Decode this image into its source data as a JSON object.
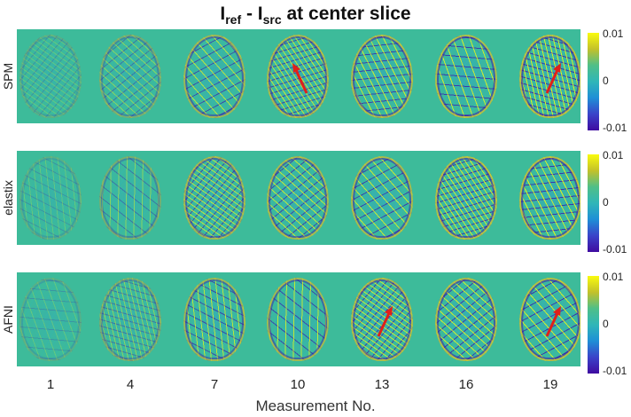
{
  "title": {
    "main": "I",
    "sub1": "ref",
    "dash": " - I",
    "sub2": "src",
    "tail": " at center slice"
  },
  "rows": [
    {
      "label": "SPM",
      "arrows": [
        3,
        6
      ]
    },
    {
      "label": "elastix",
      "arrows": []
    },
    {
      "label": "AFNI",
      "arrows": [
        4,
        6
      ]
    }
  ],
  "measurements": [
    "1",
    "4",
    "7",
    "10",
    "13",
    "16",
    "19"
  ],
  "x_label": "Measurement No.",
  "colorbar": {
    "max_label": "0.01",
    "mid_label": "0",
    "min_label": "-0.01"
  },
  "colors": {
    "background": "#3dbb9a",
    "positive": "#f9fb0e",
    "negative": "#3f0ba0",
    "arrow": "#e0201a"
  }
}
